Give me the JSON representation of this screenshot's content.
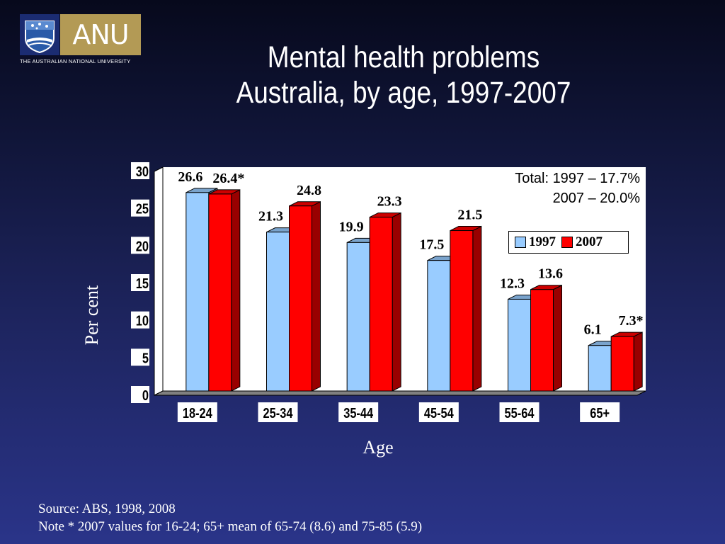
{
  "logo": {
    "wordmark": "ANU",
    "subtitle": "THE AUSTRALIAN NATIONAL UNIVERSITY"
  },
  "title": {
    "line1": "Mental health problems",
    "line2": "Australia, by age, 1997-2007"
  },
  "chart_data": {
    "type": "bar",
    "categories": [
      "18-24",
      "25-34",
      "35-44",
      "45-54",
      "55-64",
      "65+"
    ],
    "series": [
      {
        "name": "1997",
        "color": "#99ccff",
        "values": [
          26.6,
          21.3,
          19.9,
          17.5,
          12.3,
          6.1
        ],
        "labels": [
          "26.6",
          "21.3",
          "19.9",
          "17.5",
          "12.3",
          "6.1"
        ]
      },
      {
        "name": "2007",
        "color": "#ff0000",
        "values": [
          26.4,
          24.8,
          23.3,
          21.5,
          13.6,
          7.3
        ],
        "labels": [
          "26.4*",
          "24.8",
          "23.3",
          "21.5",
          "13.6",
          "7.3*"
        ]
      }
    ],
    "ylabel": "Per cent",
    "xlabel": "Age",
    "ylim": [
      0,
      30
    ],
    "yticks": [
      0,
      5,
      10,
      15,
      20,
      25,
      30
    ],
    "legend_position": "right",
    "annotation": {
      "line1": "Total: 1997 – 17.7%",
      "line2": "2007 – 20.0%"
    }
  },
  "footer": {
    "source": "Source: ABS, 1998, 2008",
    "note": "Note * 2007 values for 16-24; 65+ mean of 65-74 (8.6) and 75-85 (5.9)"
  }
}
